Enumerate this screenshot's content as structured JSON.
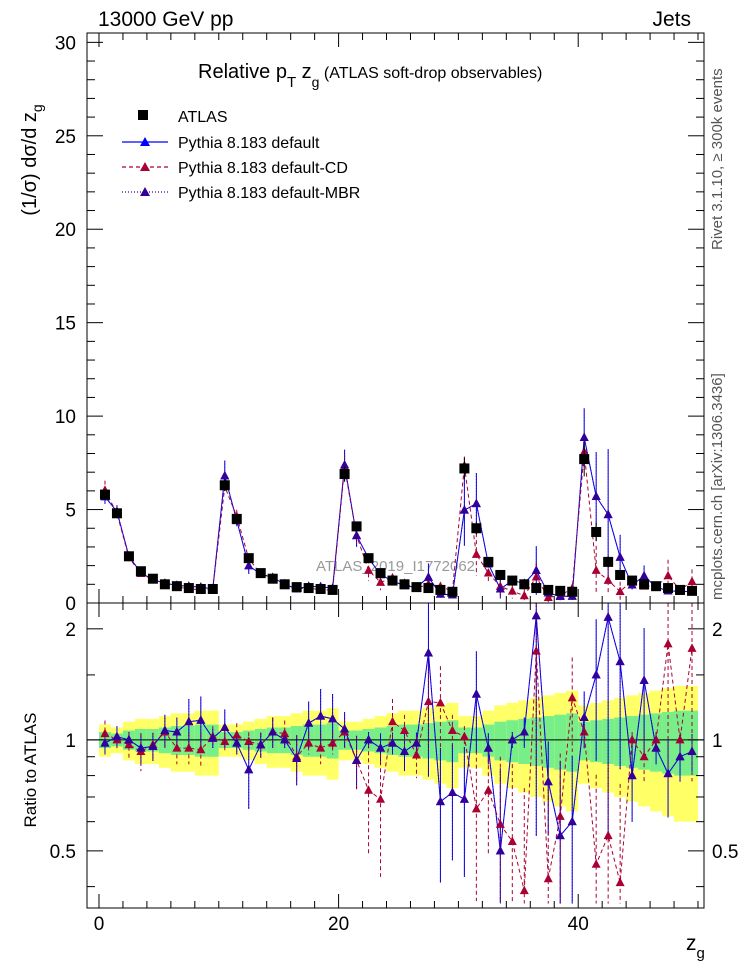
{
  "header": {
    "left": "13000 GeV pp",
    "right": "Jets"
  },
  "side_labels": {
    "rivet": "Rivet 3.1.10, ≥ 300k events",
    "mcplots": "mcplots.cern.ch [arXiv:1306.3436]"
  },
  "watermark": "ATLAS_2019_I1772062",
  "chart_data": {
    "type": "scatter",
    "title": "Relative p_T z_g (ATLAS soft-drop observables)",
    "title_parts": {
      "main": "Relative p",
      "sub_T": "T",
      "mid": " z",
      "sub_g": "g",
      "tail": " (ATLAS soft-drop observables)"
    },
    "xlabel": "z_g",
    "xlabel_parts": {
      "main": "z",
      "sub": "g"
    },
    "ylabel": "(1/σ) dσ/d z_g",
    "ylabel_parts": {
      "main": "(1/σ) dσ/d z",
      "sub": "g"
    },
    "ratio_ylabel": "Ratio to ATLAS",
    "xlim": [
      -1,
      50.5
    ],
    "ylim": [
      0,
      30.5
    ],
    "ratio_ylim": [
      0.35,
      2.35
    ],
    "xticks": [
      "0",
      "20",
      "40"
    ],
    "yticks": [
      "0",
      "5",
      "10",
      "15",
      "20",
      "25",
      "30"
    ],
    "ratio_yticks": [
      "0.5",
      "1",
      "2"
    ],
    "x": [
      0.5,
      1.5,
      2.5,
      3.5,
      4.5,
      5.5,
      6.5,
      7.5,
      8.5,
      9.5,
      10.5,
      11.5,
      12.5,
      13.5,
      14.5,
      15.5,
      16.5,
      17.5,
      18.5,
      19.5,
      20.5,
      21.5,
      22.5,
      23.5,
      24.5,
      25.5,
      26.5,
      27.5,
      28.5,
      29.5,
      30.5,
      31.5,
      32.5,
      33.5,
      34.5,
      35.5,
      36.5,
      37.5,
      38.5,
      39.5,
      40.5,
      41.5,
      42.5,
      43.5,
      44.5,
      45.5,
      46.5,
      47.5,
      48.5,
      49.5
    ],
    "legend": [
      "ATLAS",
      "Pythia 8.183 default",
      "Pythia 8.183 default-CD",
      "Pythia 8.183 default-MBR"
    ],
    "series": [
      {
        "name": "ATLAS",
        "color": "#000000",
        "values": [
          5.8,
          4.8,
          2.5,
          1.7,
          1.3,
          1.0,
          0.9,
          0.8,
          0.75,
          0.75,
          6.3,
          4.5,
          2.4,
          1.6,
          1.3,
          1.0,
          0.85,
          0.8,
          0.75,
          0.7,
          6.9,
          4.1,
          2.4,
          1.6,
          1.2,
          1.0,
          0.85,
          0.8,
          0.7,
          0.6,
          7.2,
          4.0,
          2.2,
          1.5,
          1.2,
          1.0,
          0.8,
          0.7,
          0.65,
          0.6,
          7.7,
          3.8,
          2.2,
          1.5,
          1.2,
          1.0,
          0.9,
          0.8,
          0.7,
          0.65
        ],
        "rel_unc": [
          0.05,
          0.04,
          0.06,
          0.07,
          0.07,
          0.08,
          0.09,
          0.09,
          0.1,
          0.1,
          0.05,
          0.05,
          0.06,
          0.07,
          0.08,
          0.08,
          0.09,
          0.1,
          0.1,
          0.11,
          0.06,
          0.06,
          0.07,
          0.08,
          0.09,
          0.1,
          0.1,
          0.11,
          0.12,
          0.13,
          0.08,
          0.08,
          0.1,
          0.12,
          0.13,
          0.14,
          0.15,
          0.16,
          0.17,
          0.18,
          0.12,
          0.13,
          0.14,
          0.15,
          0.16,
          0.17,
          0.18,
          0.19,
          0.2,
          0.2
        ]
      },
      {
        "name": "Pythia 8.183 default",
        "color": "#0000ff",
        "ratio": [
          0.98,
          1.02,
          1.0,
          0.95,
          0.96,
          1.06,
          1.05,
          1.12,
          1.13,
          1.01,
          1.08,
          0.98,
          0.83,
          0.97,
          1.05,
          1.0,
          0.89,
          1.11,
          1.16,
          1.14,
          1.07,
          0.88,
          1.0,
          0.95,
          0.98,
          0.93,
          0.98,
          1.72,
          0.68,
          0.72,
          0.69,
          1.33,
          0.95,
          0.5,
          1.0,
          1.05,
          2.17,
          0.77,
          0.55,
          0.6,
          1.15,
          1.5,
          2.15,
          1.63,
          0.8,
          1.45,
          0.95,
          0.81,
          0.9,
          0.93
        ]
      },
      {
        "name": "Pythia 8.183 default-CD",
        "color": "#aa0033",
        "ratio": [
          1.04,
          1.0,
          0.97,
          0.93,
          0.97,
          1.05,
          0.95,
          0.95,
          0.94,
          1.02,
          0.99,
          1.03,
          0.99,
          0.97,
          1.05,
          1.04,
          0.9,
          0.98,
          0.95,
          0.98,
          1.05,
          0.88,
          0.73,
          0.69,
          1.12,
          1.06,
          0.91,
          1.27,
          1.26,
          1.06,
          1.02,
          0.65,
          0.73,
          0.59,
          0.53,
          0.39,
          1.74,
          0.42,
          0.62,
          1.3,
          1.05,
          0.46,
          0.55,
          0.41,
          1.0,
          0.9,
          1.0,
          1.82,
          1.0,
          1.77
        ]
      },
      {
        "name": "Pythia 8.183 default-MBR",
        "color": "#330099",
        "ratio": [
          0.98,
          1.02,
          1.0,
          0.95,
          0.96,
          1.06,
          1.05,
          1.12,
          1.13,
          1.01,
          1.08,
          0.98,
          0.83,
          0.97,
          1.05,
          1.0,
          0.89,
          1.11,
          1.16,
          1.14,
          1.07,
          0.88,
          1.0,
          0.95,
          0.98,
          0.93,
          0.98,
          1.72,
          0.68,
          0.72,
          0.69,
          1.33,
          0.95,
          0.5,
          1.0,
          1.05,
          2.17,
          0.77,
          0.55,
          0.6,
          1.15,
          1.5,
          2.15,
          1.63,
          0.8,
          1.45,
          0.95,
          0.81,
          0.9,
          0.93
        ]
      }
    ]
  }
}
